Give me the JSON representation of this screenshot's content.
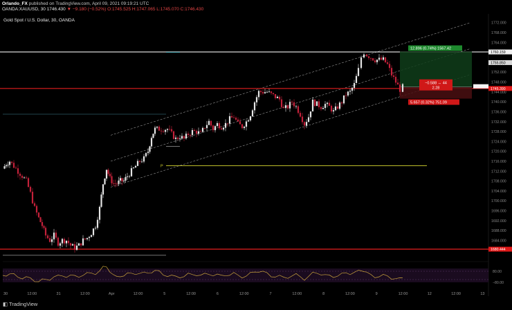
{
  "header": {
    "author": "Orlando_FX",
    "published_text": "published on TradingView.com, April 09, 2021 09:19:21 UTC",
    "symbol": "OANDA:XAUUSD, 30",
    "price": "1746.430",
    "change": "▼ −9.180 (−0.52%)",
    "ohlc": "O:1745.525 H:1747.065 L:1745.070 C:1746.430"
  },
  "chart_title": "Gold Spot / U.S. Dollar, 30, OANDA",
  "footer": {
    "logo": "TradingView"
  },
  "colors": {
    "bg": "#000000",
    "bull": "#e6e6e6",
    "bear": "#c4213a",
    "hline": "#ff2222",
    "yellow": "#d8d830",
    "oscillator": "#c8a23c"
  },
  "chart_data": {
    "type": "candlestick",
    "title": "Gold Spot / U.S. Dollar, 30, OANDA",
    "ylim": [
      1676,
      1775
    ],
    "yticks": [
      "1772.000",
      "1768.000",
      "1764.000",
      "1760.000",
      "1756.000",
      "1752.000",
      "1748.000",
      "1744.000",
      "1740.000",
      "1736.000",
      "1732.000",
      "1728.000",
      "1724.000",
      "1720.000",
      "1716.000",
      "1712.000",
      "1708.000",
      "1704.000",
      "1700.000",
      "1696.000",
      "1692.000",
      "1688.000",
      "1684.000",
      "1680.000"
    ],
    "xticks": [
      "30",
      "12:00",
      "31",
      "12:00",
      "Apr",
      "12:00",
      "5",
      "12:00",
      "6",
      "12:00",
      "7",
      "12:00",
      "8",
      "12:00",
      "9",
      "12:00",
      "12",
      "12:00",
      "13"
    ],
    "price_path": [
      [
        0,
        1713
      ],
      [
        5,
        1715
      ],
      [
        10,
        1716
      ],
      [
        16,
        1714
      ],
      [
        22,
        1712
      ],
      [
        28,
        1710
      ],
      [
        34,
        1708
      ],
      [
        40,
        1703
      ],
      [
        46,
        1697
      ],
      [
        52,
        1693
      ],
      [
        57,
        1690
      ],
      [
        62,
        1686
      ],
      [
        68,
        1684
      ],
      [
        74,
        1686
      ],
      [
        80,
        1683
      ],
      [
        86,
        1684
      ],
      [
        92,
        1684
      ],
      [
        98,
        1682
      ],
      [
        104,
        1681
      ],
      [
        110,
        1682
      ],
      [
        116,
        1684
      ],
      [
        122,
        1685
      ],
      [
        128,
        1687
      ],
      [
        134,
        1690
      ],
      [
        140,
        1697
      ],
      [
        145,
        1707
      ],
      [
        150,
        1713
      ],
      [
        155,
        1709
      ],
      [
        160,
        1707
      ],
      [
        165,
        1707
      ],
      [
        170,
        1708
      ],
      [
        175,
        1708
      ],
      [
        180,
        1710
      ],
      [
        186,
        1712
      ],
      [
        192,
        1714
      ],
      [
        198,
        1716
      ],
      [
        204,
        1717
      ],
      [
        210,
        1720
      ],
      [
        215,
        1726
      ],
      [
        220,
        1729
      ],
      [
        226,
        1729
      ],
      [
        232,
        1729
      ],
      [
        238,
        1729
      ],
      [
        244,
        1727
      ],
      [
        250,
        1725
      ],
      [
        256,
        1726
      ],
      [
        262,
        1725
      ],
      [
        268,
        1727
      ],
      [
        274,
        1728
      ],
      [
        280,
        1728
      ],
      [
        286,
        1727
      ],
      [
        292,
        1730
      ],
      [
        298,
        1732
      ],
      [
        304,
        1729
      ],
      [
        310,
        1731
      ],
      [
        316,
        1730
      ],
      [
        322,
        1731
      ],
      [
        328,
        1733
      ],
      [
        334,
        1734
      ],
      [
        340,
        1731
      ],
      [
        346,
        1730
      ],
      [
        352,
        1732
      ],
      [
        358,
        1735
      ],
      [
        364,
        1740
      ],
      [
        370,
        1744
      ],
      [
        376,
        1744
      ],
      [
        382,
        1744
      ],
      [
        388,
        1743
      ],
      [
        394,
        1742
      ],
      [
        400,
        1741
      ],
      [
        406,
        1737
      ],
      [
        412,
        1738
      ],
      [
        418,
        1740
      ],
      [
        424,
        1738
      ],
      [
        430,
        1735
      ],
      [
        436,
        1731
      ],
      [
        442,
        1734
      ],
      [
        448,
        1740
      ],
      [
        454,
        1739
      ],
      [
        460,
        1738
      ],
      [
        466,
        1739
      ],
      [
        472,
        1738
      ],
      [
        478,
        1736
      ],
      [
        484,
        1738
      ],
      [
        490,
        1740
      ],
      [
        496,
        1743
      ],
      [
        502,
        1744
      ],
      [
        508,
        1747
      ],
      [
        514,
        1753
      ],
      [
        518,
        1758
      ],
      [
        522,
        1760
      ],
      [
        526,
        1759
      ],
      [
        532,
        1758
      ],
      [
        538,
        1757
      ],
      [
        544,
        1757
      ],
      [
        550,
        1757
      ],
      [
        556,
        1755
      ],
      [
        562,
        1751
      ],
      [
        568,
        1748
      ],
      [
        574,
        1745
      ],
      [
        578,
        1746
      ]
    ],
    "annotations": [
      {
        "text": "12.896 (0.74%) 1567.42",
        "type": "target"
      },
      {
        "text": "5.657 (0.32%) 751.09",
        "type": "stop"
      },
      {
        "text": "−0.588 ↔ 44",
        "type": "risk-line1"
      },
      {
        "text": "2.28",
        "type": "risk-line2"
      },
      {
        "text": "P",
        "type": "pivot-label"
      }
    ],
    "levels": [
      {
        "value": 1760.159,
        "label": "1760.159",
        "kind": "white"
      },
      {
        "value": 1755.85,
        "label": "1755.850",
        "kind": "grey"
      },
      {
        "value": 1745.39,
        "label": "1745.390",
        "kind": "red"
      },
      {
        "value": 1680.444,
        "label": "1680.444",
        "kind": "red"
      }
    ],
    "oscillator": {
      "yticks": [
        "80.00",
        "−80.00"
      ]
    }
  }
}
